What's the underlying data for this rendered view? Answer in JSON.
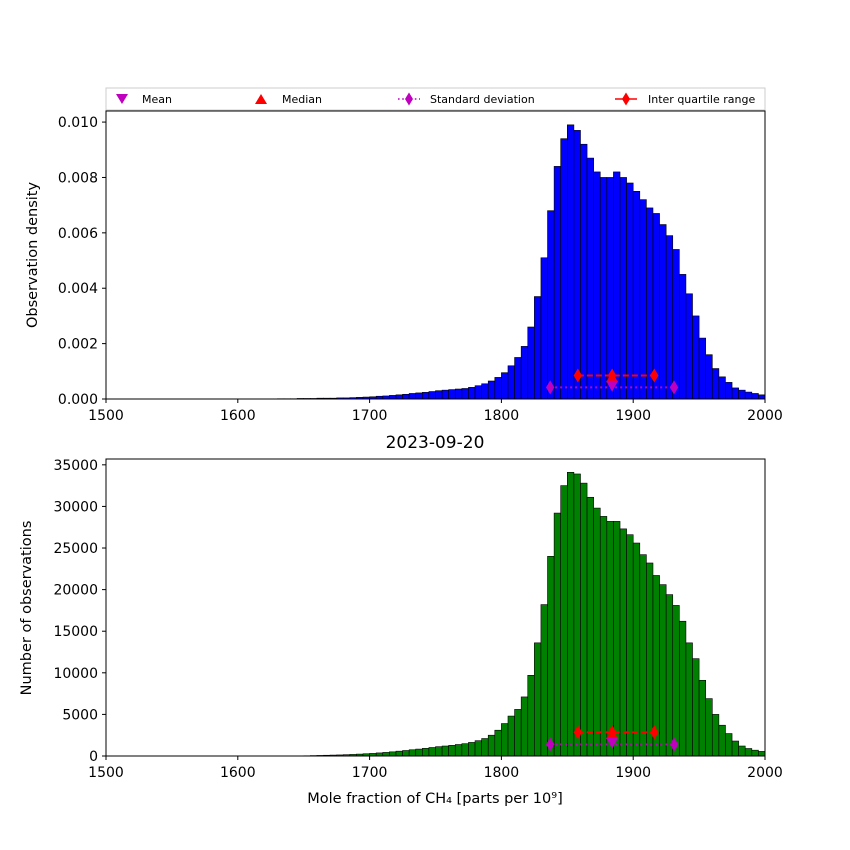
{
  "chart_data": [
    {
      "type": "bar",
      "title": "",
      "xlabel": "",
      "ylabel": "Observation density",
      "xlim": [
        1500,
        2000
      ],
      "ylim": [
        0,
        0.0104
      ],
      "xticks": [
        "1500",
        "1600",
        "1700",
        "1800",
        "1900",
        "2000"
      ],
      "yticks": [
        "0.000",
        "0.002",
        "0.004",
        "0.006",
        "0.008",
        "0.010"
      ],
      "bar_color": "#0000ff",
      "bin_start": 1500,
      "bin_width": 5,
      "values": [
        0,
        0,
        0,
        0,
        0,
        0,
        0,
        0,
        0,
        0,
        0,
        0,
        0,
        0,
        0,
        0,
        0,
        0,
        0,
        0,
        0,
        0,
        0,
        0,
        0,
        0,
        1e-05,
        1e-05,
        1e-05,
        2e-05,
        2e-05,
        2e-05,
        3e-05,
        3e-05,
        3e-05,
        4e-05,
        4e-05,
        5e-05,
        6e-05,
        7e-05,
        8e-05,
        0.0001,
        0.00011,
        0.00013,
        0.00015,
        0.00017,
        0.0002,
        0.00022,
        0.00024,
        0.00027,
        0.0003,
        0.00032,
        0.00034,
        0.00036,
        0.00038,
        0.00042,
        0.00048,
        0.00055,
        0.00065,
        0.00078,
        0.00095,
        0.0012,
        0.0015,
        0.0019,
        0.0026,
        0.0037,
        0.0051,
        0.0068,
        0.0084,
        0.0094,
        0.0099,
        0.0097,
        0.0092,
        0.0087,
        0.0082,
        0.008,
        0.008,
        0.0082,
        0.008,
        0.0078,
        0.0075,
        0.0072,
        0.0069,
        0.0067,
        0.0063,
        0.0059,
        0.0054,
        0.0045,
        0.0038,
        0.003,
        0.0022,
        0.0016,
        0.0011,
        0.0008,
        0.0006,
        0.0004,
        0.00032,
        0.00025,
        0.0002,
        0.00015
      ],
      "stats": {
        "mean": {
          "x": 1884,
          "y": 0.00048
        },
        "median": {
          "x": 1884,
          "y": 0.00078
        },
        "std": {
          "x": [
            1837,
            1931
          ],
          "y": 0.00042
        },
        "iqr": {
          "x": [
            1858,
            1884,
            1916
          ],
          "y": 0.00085
        }
      },
      "legend": {
        "placement": "top",
        "entries": [
          "Mean",
          "Median",
          "Standard deviation",
          "Inter quartile range"
        ]
      }
    },
    {
      "type": "bar",
      "title": "2023-09-20",
      "xlabel": "Mole fraction of CH₄ [parts per 10⁹]",
      "ylabel": "Number of observations",
      "xlim": [
        1500,
        2000
      ],
      "ylim": [
        0,
        35700
      ],
      "xticks": [
        "1500",
        "1600",
        "1700",
        "1800",
        "1900",
        "2000"
      ],
      "yticks": [
        "0",
        "5000",
        "10000",
        "15000",
        "20000",
        "25000",
        "30000",
        "35000"
      ],
      "bar_color": "#008000",
      "bin_start": 1500,
      "bin_width": 5,
      "values": [
        0,
        0,
        0,
        0,
        0,
        0,
        0,
        0,
        0,
        0,
        0,
        0,
        0,
        0,
        0,
        0,
        0,
        0,
        0,
        0,
        0,
        0,
        0,
        0,
        0,
        0,
        0,
        0,
        0,
        0,
        30,
        50,
        70,
        90,
        110,
        130,
        160,
        190,
        230,
        270,
        310,
        370,
        430,
        500,
        580,
        660,
        750,
        830,
        920,
        1020,
        1120,
        1200,
        1280,
        1380,
        1480,
        1630,
        1840,
        2100,
        2500,
        3100,
        3900,
        4800,
        5600,
        7100,
        9700,
        13600,
        18200,
        24000,
        29200,
        32500,
        34100,
        33900,
        32800,
        31100,
        29800,
        28800,
        28200,
        28200,
        27300,
        26600,
        25600,
        24200,
        23200,
        21700,
        20600,
        19400,
        18100,
        16200,
        13600,
        11700,
        9100,
        6900,
        5000,
        3700,
        2700,
        1800,
        1200,
        900,
        700,
        550
      ],
      "stats": {
        "mean": {
          "x": 1884,
          "y": 1600
        },
        "median": {
          "x": 1884,
          "y": 2650
        },
        "std": {
          "x": [
            1837,
            1931
          ],
          "y": 1400
        },
        "iqr": {
          "x": [
            1858,
            1884,
            1916
          ],
          "y": 2850
        }
      }
    }
  ],
  "colors": {
    "mean": "#bf00bf",
    "median": "#ff0000",
    "std": "#bf00bf",
    "iqr": "#ff0000"
  }
}
